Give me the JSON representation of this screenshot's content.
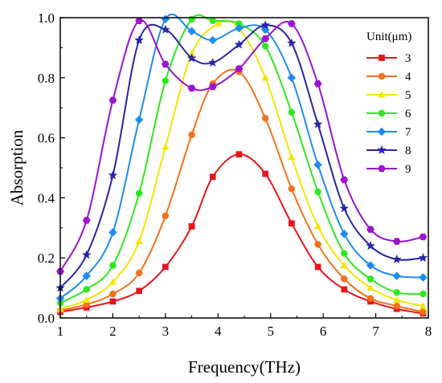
{
  "chart_data": {
    "type": "line",
    "xlabel": "Frequency(THz)",
    "ylabel": "Absorption",
    "xlim": [
      1,
      8
    ],
    "ylim": [
      0,
      1.0
    ],
    "x_ticks": [
      "1",
      "2",
      "3",
      "4",
      "5",
      "6",
      "7",
      "8"
    ],
    "y_ticks": [
      "0.0",
      "0.2",
      "0.4",
      "0.6",
      "0.8",
      "1.0"
    ],
    "legend_title": "Unit(μm)",
    "legend_position": "top-right",
    "grid": false,
    "series": [
      {
        "name": "3",
        "color": "#e8141c",
        "marker": "square",
        "points": [
          [
            1.0,
            0.02
          ],
          [
            1.5,
            0.035
          ],
          [
            2.0,
            0.055
          ],
          [
            2.5,
            0.09
          ],
          [
            3.0,
            0.17
          ],
          [
            3.5,
            0.305
          ],
          [
            3.9,
            0.47
          ],
          [
            4.4,
            0.545
          ],
          [
            4.9,
            0.48
          ],
          [
            5.4,
            0.315
          ],
          [
            5.9,
            0.17
          ],
          [
            6.4,
            0.095
          ],
          [
            6.9,
            0.055
          ],
          [
            7.4,
            0.03
          ],
          [
            7.9,
            0.015
          ]
        ],
        "marker_x": [
          1.0,
          1.5,
          2.0,
          2.5,
          3.0,
          3.5,
          3.9,
          4.4,
          4.9,
          5.4,
          5.9,
          6.4,
          6.9,
          7.4,
          7.9
        ]
      },
      {
        "name": "4",
        "color": "#f5701c",
        "marker": "circle",
        "points": [
          [
            1.0,
            0.025
          ],
          [
            1.5,
            0.045
          ],
          [
            2.0,
            0.08
          ],
          [
            2.5,
            0.15
          ],
          [
            3.0,
            0.34
          ],
          [
            3.5,
            0.61
          ],
          [
            3.9,
            0.78
          ],
          [
            4.4,
            0.82
          ],
          [
            4.9,
            0.665
          ],
          [
            5.4,
            0.43
          ],
          [
            5.9,
            0.245
          ],
          [
            6.4,
            0.13
          ],
          [
            6.9,
            0.065
          ],
          [
            7.4,
            0.04
          ],
          [
            7.9,
            0.02
          ]
        ],
        "marker_x": [
          1.0,
          1.5,
          2.0,
          2.5,
          3.0,
          3.5,
          3.9,
          4.4,
          4.9,
          5.4,
          5.9,
          6.4,
          6.9,
          7.4,
          7.9
        ]
      },
      {
        "name": "5",
        "color": "#f2e600",
        "marker": "triangle",
        "points": [
          [
            1.0,
            0.03
          ],
          [
            1.5,
            0.06
          ],
          [
            2.0,
            0.12
          ],
          [
            2.5,
            0.255
          ],
          [
            3.0,
            0.57
          ],
          [
            3.5,
            0.88
          ],
          [
            4.0,
            0.98
          ],
          [
            4.4,
            0.965
          ],
          [
            4.9,
            0.8
          ],
          [
            5.4,
            0.535
          ],
          [
            5.9,
            0.305
          ],
          [
            6.4,
            0.175
          ],
          [
            6.9,
            0.1
          ],
          [
            7.4,
            0.06
          ],
          [
            7.9,
            0.04
          ]
        ],
        "marker_x": [
          1.0,
          1.5,
          2.0,
          2.5,
          3.0,
          3.5,
          4.0,
          4.4,
          4.9,
          5.4,
          5.9,
          6.4,
          6.9,
          7.4,
          7.9
        ]
      },
      {
        "name": "6",
        "color": "#2ee81e",
        "marker": "circle",
        "points": [
          [
            1.0,
            0.05
          ],
          [
            1.5,
            0.095
          ],
          [
            2.0,
            0.175
          ],
          [
            2.5,
            0.415
          ],
          [
            3.0,
            0.79
          ],
          [
            3.5,
            0.995
          ],
          [
            3.9,
            0.99
          ],
          [
            4.4,
            0.98
          ],
          [
            4.9,
            0.905
          ],
          [
            5.4,
            0.685
          ],
          [
            5.9,
            0.42
          ],
          [
            6.4,
            0.215
          ],
          [
            6.9,
            0.13
          ],
          [
            7.4,
            0.085
          ],
          [
            7.9,
            0.08
          ]
        ],
        "marker_x": [
          1.0,
          1.5,
          2.0,
          2.5,
          3.0,
          3.5,
          3.9,
          4.4,
          4.9,
          5.4,
          5.9,
          6.4,
          6.9,
          7.4,
          7.9
        ]
      },
      {
        "name": "7",
        "color": "#1e8cf0",
        "marker": "diamond",
        "points": [
          [
            1.0,
            0.065
          ],
          [
            1.5,
            0.14
          ],
          [
            2.0,
            0.285
          ],
          [
            2.5,
            0.66
          ],
          [
            3.0,
            0.995
          ],
          [
            3.5,
            0.955
          ],
          [
            3.9,
            0.925
          ],
          [
            4.4,
            0.965
          ],
          [
            4.9,
            0.96
          ],
          [
            5.4,
            0.8
          ],
          [
            5.9,
            0.51
          ],
          [
            6.4,
            0.28
          ],
          [
            6.9,
            0.175
          ],
          [
            7.4,
            0.14
          ],
          [
            7.9,
            0.135
          ]
        ],
        "marker_x": [
          1.0,
          1.5,
          2.0,
          2.5,
          3.0,
          3.5,
          3.9,
          4.4,
          4.9,
          5.4,
          5.9,
          6.4,
          6.9,
          7.4,
          7.9
        ]
      },
      {
        "name": "8",
        "color": "#2825a8",
        "marker": "star",
        "points": [
          [
            1.0,
            0.1
          ],
          [
            1.5,
            0.21
          ],
          [
            2.0,
            0.475
          ],
          [
            2.5,
            0.925
          ],
          [
            3.0,
            0.96
          ],
          [
            3.5,
            0.865
          ],
          [
            3.9,
            0.85
          ],
          [
            4.4,
            0.91
          ],
          [
            4.9,
            0.975
          ],
          [
            5.4,
            0.915
          ],
          [
            5.9,
            0.645
          ],
          [
            6.4,
            0.365
          ],
          [
            6.9,
            0.24
          ],
          [
            7.4,
            0.195
          ],
          [
            7.9,
            0.2
          ]
        ],
        "marker_x": [
          1.0,
          1.5,
          2.0,
          2.5,
          3.0,
          3.5,
          3.9,
          4.4,
          4.9,
          5.4,
          5.9,
          6.4,
          6.9,
          7.4,
          7.9
        ]
      },
      {
        "name": "9",
        "color": "#9a14d2",
        "marker": "hexagon",
        "points": [
          [
            1.0,
            0.155
          ],
          [
            1.5,
            0.325
          ],
          [
            2.0,
            0.725
          ],
          [
            2.5,
            0.99
          ],
          [
            3.0,
            0.845
          ],
          [
            3.5,
            0.765
          ],
          [
            3.9,
            0.77
          ],
          [
            4.4,
            0.83
          ],
          [
            4.9,
            0.93
          ],
          [
            5.4,
            0.98
          ],
          [
            5.9,
            0.78
          ],
          [
            6.4,
            0.46
          ],
          [
            6.9,
            0.295
          ],
          [
            7.4,
            0.255
          ],
          [
            7.9,
            0.27
          ]
        ],
        "marker_x": [
          1.0,
          1.5,
          2.0,
          2.5,
          3.0,
          3.5,
          3.9,
          4.4,
          4.9,
          5.4,
          5.9,
          6.4,
          6.9,
          7.4,
          7.9
        ]
      }
    ]
  }
}
